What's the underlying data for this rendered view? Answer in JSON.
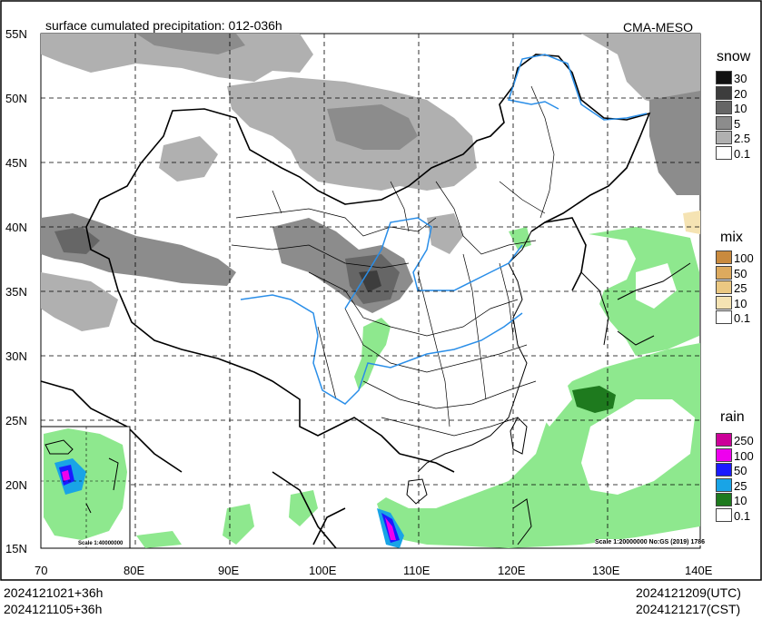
{
  "map": {
    "title": "surface cumulated precipitation: 012-036h",
    "model": "CMA-MESO",
    "lat_labels": [
      "55N",
      "50N",
      "45N",
      "40N",
      "35N",
      "30N",
      "25N",
      "20N",
      "15N"
    ],
    "lon_labels": [
      "70",
      "80E",
      "90E",
      "100E",
      "110E",
      "120E",
      "130E",
      "140E"
    ],
    "scale_main": "Scale 1:20000000 No:GS (2019) 1786",
    "scale_inset": "Scale 1:40000000"
  },
  "legend": {
    "snow": {
      "title": "snow",
      "levels": [
        {
          "value": "30",
          "color": "#111111"
        },
        {
          "value": "20",
          "color": "#3d3d3d"
        },
        {
          "value": "10",
          "color": "#666666"
        },
        {
          "value": "5",
          "color": "#8c8c8c"
        },
        {
          "value": "2.5",
          "color": "#b0b0b0"
        },
        {
          "value": "0.1",
          "color": "#ffffff"
        }
      ]
    },
    "mix": {
      "title": "mix",
      "levels": [
        {
          "value": "100",
          "color": "#c98a3e"
        },
        {
          "value": "50",
          "color": "#ddaa5e"
        },
        {
          "value": "25",
          "color": "#ebc882"
        },
        {
          "value": "10",
          "color": "#f5e3b3"
        },
        {
          "value": "0.1",
          "color": "#ffffff"
        }
      ]
    },
    "rain": {
      "title": "rain",
      "levels": [
        {
          "value": "250",
          "color": "#cc0099"
        },
        {
          "value": "100",
          "color": "#ee00ee"
        },
        {
          "value": "50",
          "color": "#1a1aff"
        },
        {
          "value": "25",
          "color": "#19a4e6"
        },
        {
          "value": "10",
          "color": "#1e7a1e"
        },
        {
          "value": "0.1",
          "color": "#ffffff"
        }
      ]
    }
  },
  "footer": {
    "init_utc": "2024121021+36h",
    "init_cst": "2024121105+36h",
    "valid_utc": "2024121209(UTC)",
    "valid_cst": "2024121217(CST)"
  }
}
